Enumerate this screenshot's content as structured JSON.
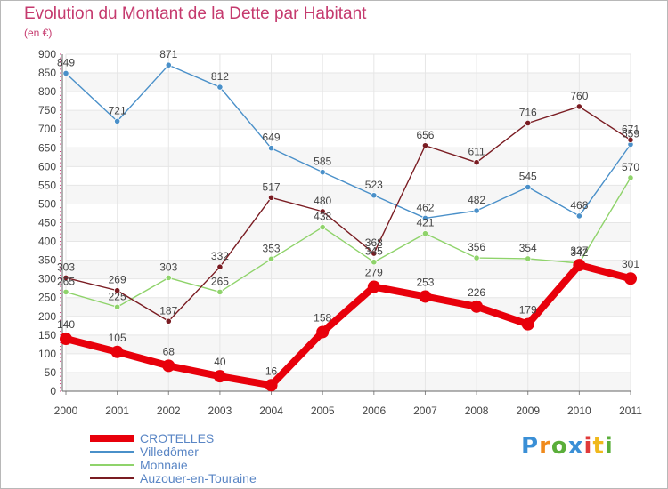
{
  "title": "Evolution du Montant de la Dette par Habitant",
  "unit": "(en €)",
  "brand": {
    "letters": [
      "P",
      "r",
      "o",
      "x",
      "i",
      "t",
      "i"
    ],
    "colors": [
      "#3a8fd6",
      "#f08a1c",
      "#5aae3a",
      "#3a8fd6",
      "#e03a3a",
      "#f0b81c",
      "#5aae3a"
    ]
  },
  "chart_data": {
    "type": "line",
    "categories": [
      "2000",
      "2001",
      "2002",
      "2003",
      "2004",
      "2005",
      "2006",
      "2007",
      "2008",
      "2009",
      "2010",
      "2011"
    ],
    "ylim": [
      0,
      900
    ],
    "yticks": [
      0,
      50,
      100,
      150,
      200,
      250,
      300,
      350,
      400,
      450,
      500,
      550,
      600,
      650,
      700,
      750,
      800,
      850,
      900
    ],
    "grid": true,
    "legend_position": "bottom-left",
    "series": [
      {
        "name": "CROTELLES",
        "color": "#e8000b",
        "values": [
          140,
          105,
          68,
          40,
          16,
          158,
          279,
          253,
          226,
          179,
          337,
          301
        ]
      },
      {
        "name": "Villedômer",
        "color": "#4a90c9",
        "values": [
          849,
          721,
          871,
          812,
          649,
          585,
          523,
          462,
          482,
          545,
          468,
          659
        ]
      },
      {
        "name": "Monnaie",
        "color": "#8fd36b",
        "values": [
          265,
          225,
          303,
          265,
          353,
          438,
          345,
          421,
          356,
          354,
          342,
          570
        ]
      },
      {
        "name": "Auzouer-en-Touraine",
        "color": "#7a1c22",
        "values": [
          303,
          269,
          187,
          332,
          517,
          480,
          368,
          656,
          611,
          716,
          760,
          671
        ]
      }
    ]
  }
}
